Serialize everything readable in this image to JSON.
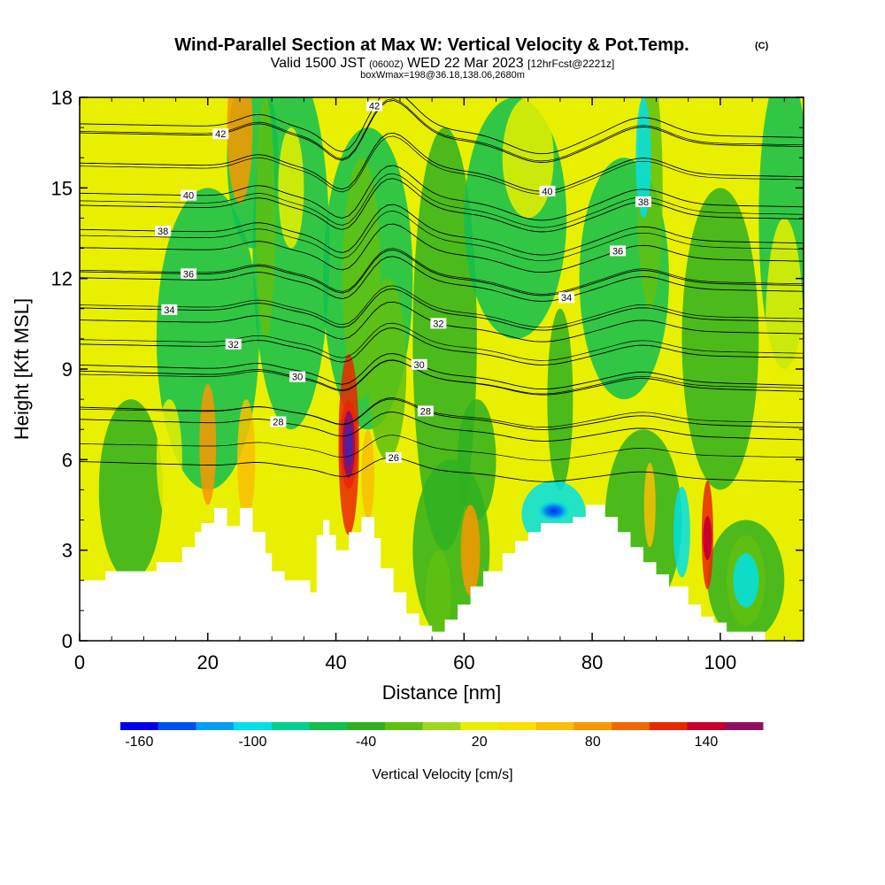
{
  "header": {
    "title": "Wind-Parallel Section at Max W: Vertical Velocity & Pot.Temp.",
    "title_suffix": "(C)",
    "valid_a": "Valid 1500 JST",
    "valid_b": "(0600Z)",
    "valid_c": "WED 22 Mar 2023",
    "valid_d": "[12hrFcst@2221z]",
    "box_info": "boxWmax=198@36.18,138.06,2680m"
  },
  "chart_data": {
    "type": "heatmap",
    "xlabel": "Distance [nm]",
    "ylabel": "Height [Kft MSL]",
    "xlim": [
      0,
      113
    ],
    "ylim": [
      0,
      18
    ],
    "x_ticks": [
      "0",
      "20",
      "40",
      "60",
      "80",
      "100"
    ],
    "x_tick_values": [
      0,
      20,
      40,
      60,
      80,
      100
    ],
    "y_ticks": [
      "0",
      "3",
      "6",
      "9",
      "12",
      "15",
      "18"
    ],
    "y_tick_values": [
      0,
      3,
      6,
      9,
      12,
      15,
      18
    ],
    "colorbar": {
      "label": "Vertical Velocity [cm/s]",
      "tick_labels": [
        "-160",
        "-100",
        "-40",
        "20",
        "80",
        "140"
      ],
      "tick_values": [
        -160,
        -100,
        -40,
        20,
        80,
        140
      ],
      "levels": [
        -160,
        -140,
        -120,
        -100,
        -80,
        -60,
        -40,
        -20,
        0,
        20,
        40,
        60,
        80,
        100,
        120,
        140,
        160,
        180
      ],
      "colors": [
        "#0000e8",
        "#0050f0",
        "#00a0f0",
        "#00e0e8",
        "#00d090",
        "#10c050",
        "#30b020",
        "#60c010",
        "#a0d820",
        "#e8f000",
        "#f8e000",
        "#f8c000",
        "#f89800",
        "#f06800",
        "#e82800",
        "#c80030",
        "#901060"
      ]
    },
    "terrain_profile": [
      [
        0,
        2
      ],
      [
        4,
        2
      ],
      [
        4,
        2.3
      ],
      [
        12,
        2.3
      ],
      [
        12,
        2.6
      ],
      [
        16,
        2.6
      ],
      [
        16,
        3.1
      ],
      [
        18,
        3.1
      ],
      [
        18,
        3.6
      ],
      [
        19,
        3.6
      ],
      [
        19,
        3.9
      ],
      [
        21,
        3.9
      ],
      [
        21,
        4.4
      ],
      [
        23,
        4.4
      ],
      [
        23,
        3.8
      ],
      [
        25,
        3.8
      ],
      [
        25,
        4.4
      ],
      [
        27,
        4.4
      ],
      [
        27,
        3.6
      ],
      [
        29,
        3.6
      ],
      [
        29,
        2.9
      ],
      [
        30,
        2.9
      ],
      [
        30,
        2.3
      ],
      [
        32,
        2.3
      ],
      [
        32,
        2
      ],
      [
        36,
        2
      ],
      [
        36,
        1.6
      ],
      [
        37,
        1.6
      ],
      [
        37,
        3.5
      ],
      [
        38,
        3.5
      ],
      [
        38,
        4
      ],
      [
        39,
        4
      ],
      [
        39,
        3.5
      ],
      [
        40,
        3.5
      ],
      [
        40,
        3
      ],
      [
        42,
        3
      ],
      [
        42,
        3.6
      ],
      [
        44,
        3.6
      ],
      [
        44,
        4.1
      ],
      [
        46,
        4.1
      ],
      [
        46,
        3.4
      ],
      [
        47,
        3.4
      ],
      [
        47,
        2.4
      ],
      [
        49,
        2.4
      ],
      [
        49,
        1.6
      ],
      [
        51,
        1.6
      ],
      [
        51,
        0.9
      ],
      [
        53,
        0.9
      ],
      [
        53,
        0.5
      ],
      [
        55,
        0.5
      ],
      [
        55,
        0.3
      ],
      [
        57,
        0.3
      ],
      [
        57,
        0.7
      ],
      [
        59,
        0.7
      ],
      [
        59,
        1.2
      ],
      [
        61,
        1.2
      ],
      [
        61,
        1.8
      ],
      [
        63,
        1.8
      ],
      [
        63,
        2.3
      ],
      [
        66,
        2.3
      ],
      [
        66,
        2.9
      ],
      [
        68,
        2.9
      ],
      [
        68,
        3.3
      ],
      [
        70,
        3.3
      ],
      [
        70,
        3.6
      ],
      [
        72,
        3.6
      ],
      [
        72,
        3.9
      ],
      [
        77,
        3.9
      ],
      [
        77,
        4.1
      ],
      [
        79,
        4.1
      ],
      [
        79,
        4.5
      ],
      [
        82,
        4.5
      ],
      [
        82,
        4.1
      ],
      [
        84,
        4.1
      ],
      [
        84,
        3.6
      ],
      [
        86,
        3.6
      ],
      [
        86,
        3.1
      ],
      [
        88,
        3.1
      ],
      [
        88,
        2.6
      ],
      [
        90,
        2.6
      ],
      [
        90,
        2.2
      ],
      [
        92,
        2.2
      ],
      [
        92,
        1.8
      ],
      [
        95,
        1.8
      ],
      [
        95,
        1.2
      ],
      [
        97,
        1.2
      ],
      [
        97,
        0.8
      ],
      [
        99,
        0.8
      ],
      [
        99,
        0.6
      ],
      [
        101,
        0.6
      ],
      [
        101,
        0.3
      ],
      [
        107,
        0.3
      ],
      [
        107,
        0
      ],
      [
        113,
        0
      ]
    ],
    "isentropes": [
      {
        "level": "26",
        "base_y": 5.6,
        "label_x": 49
      },
      {
        "level": "28",
        "base_y": 7.0,
        "label_x": 31
      },
      {
        "level": "28",
        "base_y": 7.4,
        "label_x": 54
      },
      {
        "level": "30",
        "base_y": 8.6,
        "label_x": 34
      },
      {
        "level": "30",
        "base_y": 8.8,
        "label_x": 53
      },
      {
        "level": "32",
        "base_y": 9.6,
        "label_x": 24
      },
      {
        "level": "32",
        "base_y": 10.4,
        "label_x": 56
      },
      {
        "level": "34",
        "base_y": 10.8,
        "label_x": 14
      },
      {
        "level": "34",
        "base_y": 11.8,
        "label_x": 76
      },
      {
        "level": "36",
        "base_y": 12.0,
        "label_x": 17
      },
      {
        "level": "36",
        "base_y": 12.8,
        "label_x": 84
      },
      {
        "level": "38",
        "base_y": 13.4,
        "label_x": 13
      },
      {
        "level": "38",
        "base_y": 14.2,
        "label_x": 88
      },
      {
        "level": "40",
        "base_y": 14.6,
        "label_x": 17
      },
      {
        "level": "40",
        "base_y": 15.6,
        "label_x": 73
      },
      {
        "level": "42",
        "base_y": 16.6,
        "label_x": 22
      },
      {
        "level": "42",
        "base_y": 16.9,
        "label_x": 46
      }
    ]
  }
}
